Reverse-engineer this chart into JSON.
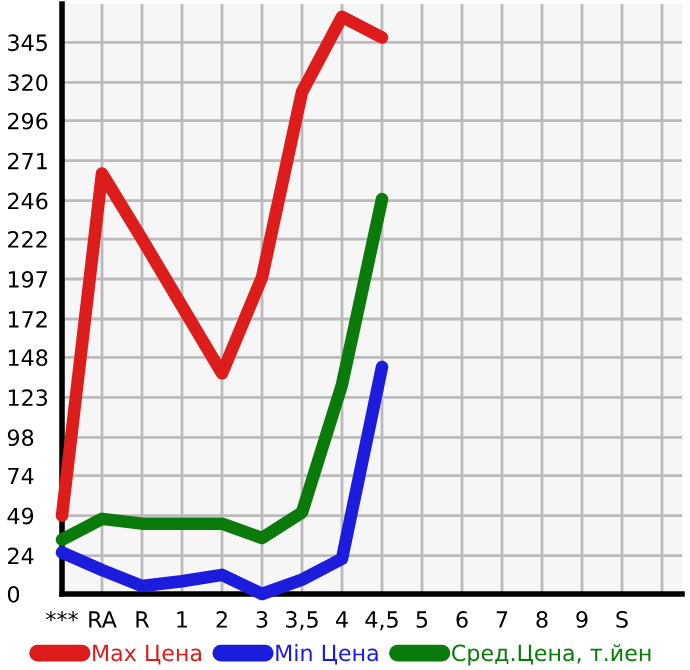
{
  "chart_data": {
    "type": "line",
    "categories": [
      "***",
      "RA",
      "R",
      "1",
      "2",
      "3",
      "3,5",
      "4",
      "4,5",
      "5",
      "6",
      "7",
      "8",
      "9",
      "S"
    ],
    "series": [
      {
        "name": "Max Цена",
        "color": "#dd1c1c",
        "values": [
          49,
          263,
          222,
          180,
          138,
          198,
          314,
          361,
          348,
          null,
          null,
          null,
          null,
          null,
          null
        ]
      },
      {
        "name": "Min Цена",
        "color": "#1c1cdd",
        "values": [
          26,
          15,
          5,
          8,
          12,
          0,
          9,
          22,
          142,
          null,
          null,
          null,
          null,
          null,
          null
        ]
      },
      {
        "name": "Сред.Цена, т.йен",
        "color": "#0a7a0a",
        "values": [
          34,
          47,
          44,
          44,
          44,
          35,
          51,
          131,
          247,
          null,
          null,
          null,
          null,
          null,
          null
        ]
      }
    ],
    "ylim": [
      0,
      369
    ],
    "yticks": [
      0,
      24,
      49,
      74,
      98,
      123,
      148,
      172,
      197,
      222,
      246,
      271,
      296,
      320,
      345
    ],
    "grid": true,
    "legend": "bottom",
    "marker": "none",
    "line_style": "solid"
  }
}
